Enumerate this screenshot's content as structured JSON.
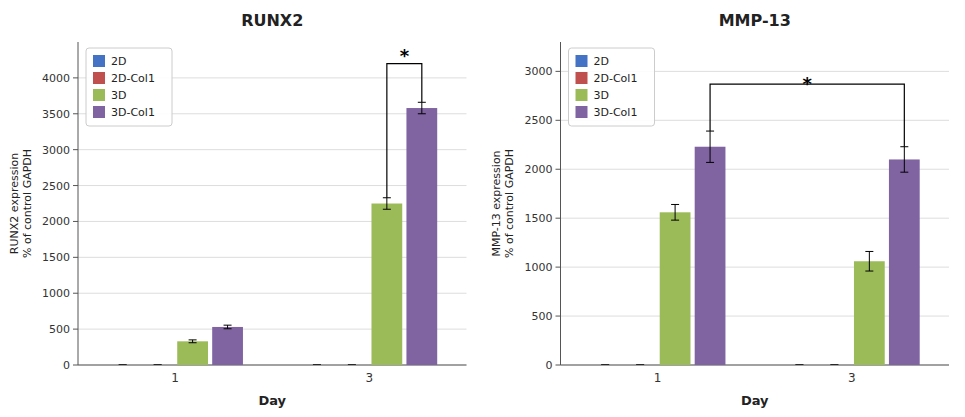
{
  "chart_data": [
    {
      "type": "bar",
      "title": "RUNX2",
      "xlabel": "Day",
      "ylabel": "RUNX2 expression\n% of control GAPDH",
      "categories": [
        "1",
        "3"
      ],
      "series": [
        {
          "name": "2D",
          "color": "#4472c4",
          "values": [
            0,
            0
          ],
          "errors": [
            0,
            0
          ]
        },
        {
          "name": "2D-Col1",
          "color": "#c0504d",
          "values": [
            0,
            0
          ],
          "errors": [
            0,
            0
          ]
        },
        {
          "name": "3D",
          "color": "#9bbb59",
          "values": [
            330,
            2250
          ],
          "errors": [
            20,
            80
          ]
        },
        {
          "name": "3D-Col1",
          "color": "#8064a2",
          "values": [
            530,
            3580
          ],
          "errors": [
            25,
            80
          ]
        }
      ],
      "ylim": [
        0,
        4500
      ],
      "yticks": [
        0,
        500,
        1000,
        1500,
        2000,
        2500,
        3000,
        3500,
        4000
      ],
      "grid": true,
      "legend": "upper left",
      "annotations": [
        {
          "text": "*",
          "y": 4380,
          "bracket_y": 4200,
          "bracket_from": {
            "category": "3",
            "series": "3D",
            "y": 2330
          },
          "bracket_to": {
            "category": "3",
            "series": "3D-Col1",
            "y": 3660
          }
        }
      ]
    },
    {
      "type": "bar",
      "title": "MMP-13",
      "xlabel": "Day",
      "ylabel": "MMP-13 expression\n% of control GAPDH",
      "categories": [
        "1",
        "3"
      ],
      "series": [
        {
          "name": "2D",
          "color": "#4472c4",
          "values": [
            0,
            0
          ],
          "errors": [
            0,
            0
          ]
        },
        {
          "name": "2D-Col1",
          "color": "#c0504d",
          "values": [
            0,
            0
          ],
          "errors": [
            0,
            0
          ]
        },
        {
          "name": "3D",
          "color": "#9bbb59",
          "values": [
            1560,
            1060
          ],
          "errors": [
            80,
            100
          ]
        },
        {
          "name": "3D-Col1",
          "color": "#8064a2",
          "values": [
            2230,
            2100
          ],
          "errors": [
            160,
            130
          ]
        }
      ],
      "ylim": [
        0,
        3300
      ],
      "yticks": [
        0,
        500,
        1000,
        1500,
        2000,
        2500,
        3000
      ],
      "grid": true,
      "legend": "upper left",
      "annotations": [
        {
          "text": "*",
          "y": 2920,
          "bracket_y": 2870,
          "bracket_from": {
            "category": "1",
            "series": "3D-Col1",
            "y": 2390
          },
          "bracket_to": {
            "category": "3",
            "series": "3D-Col1",
            "y": 2230
          }
        }
      ]
    }
  ]
}
